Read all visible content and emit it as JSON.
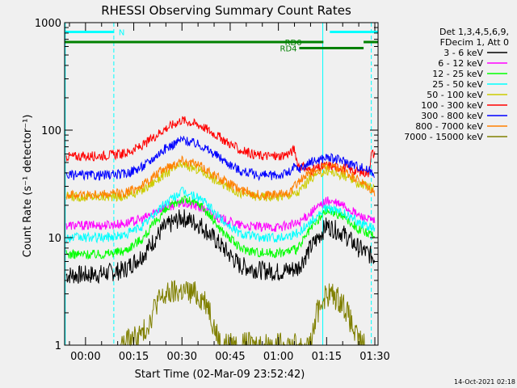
{
  "chart_data": {
    "type": "line",
    "title": "RHESSI Observing Summary Count Rates",
    "xlabel": "Start Time (02-Mar-09 23:52:42)",
    "ylabel": "Count Rate (s⁻¹ detector⁻¹)",
    "y_scale": "log",
    "ylim": [
      1,
      1000
    ],
    "xlim_minutes": [
      -6.5,
      91.0
    ],
    "y_ticks": [
      {
        "value": 1,
        "label": "1"
      },
      {
        "value": 10,
        "label": "10"
      },
      {
        "value": 100,
        "label": "100"
      },
      {
        "value": 1000,
        "label": "1000"
      }
    ],
    "x_ticks": [
      {
        "value": 0,
        "label": "00:00"
      },
      {
        "value": 15,
        "label": "00:15"
      },
      {
        "value": 30,
        "label": "00:30"
      },
      {
        "value": 45,
        "label": "00:45"
      },
      {
        "value": 60,
        "label": "01:00"
      },
      {
        "value": 75,
        "label": "01:15"
      },
      {
        "value": 90,
        "label": "01:30"
      }
    ],
    "legend_header": [
      "Det 1,3,4,5,6,9,",
      "FDecim 1, Att 0"
    ],
    "legend_position": "right",
    "series": [
      {
        "name": "3 - 6 keV",
        "color": "#000000",
        "x": [
          -6,
          0,
          5,
          12,
          18,
          24,
          30,
          36,
          42,
          48,
          54,
          60,
          66,
          70,
          75,
          80,
          85,
          90
        ],
        "y": [
          4.5,
          4.5,
          4.6,
          5,
          7,
          12,
          15.5,
          13,
          8.5,
          5.5,
          5,
          4.8,
          5.2,
          8,
          13,
          11,
          8,
          6.5
        ]
      },
      {
        "name": "6 - 12 keV",
        "color": "#ff00ff",
        "x": [
          -6,
          0,
          5,
          12,
          18,
          24,
          30,
          36,
          42,
          48,
          54,
          60,
          66,
          70,
          75,
          80,
          85,
          90
        ],
        "y": [
          13,
          13,
          13,
          13.5,
          15,
          19,
          21,
          19,
          15,
          13,
          12.5,
          12.5,
          13.5,
          17,
          22,
          20,
          16,
          14
        ]
      },
      {
        "name": "12 - 25 keV",
        "color": "#00ff00",
        "x": [
          -6,
          0,
          5,
          12,
          18,
          24,
          30,
          36,
          42,
          48,
          54,
          60,
          66,
          70,
          75,
          80,
          85,
          90
        ],
        "y": [
          7,
          7,
          7,
          7.5,
          10,
          17,
          23,
          20,
          12,
          8,
          7.3,
          7.2,
          7.8,
          12,
          18,
          16,
          12,
          10
        ]
      },
      {
        "name": "25 - 50 keV",
        "color": "#00ffff",
        "x": [
          -6,
          0,
          5,
          12,
          18,
          24,
          30,
          36,
          42,
          48,
          54,
          60,
          66,
          70,
          75,
          80,
          85,
          90
        ],
        "y": [
          10,
          10,
          10,
          10.5,
          13,
          20,
          27,
          23,
          15,
          11,
          10,
          10,
          11,
          14,
          19,
          17,
          14,
          12
        ]
      },
      {
        "name": "50 - 100 keV",
        "color": "#cccc00",
        "x": [
          -6,
          0,
          5,
          12,
          18,
          24,
          30,
          36,
          42,
          48,
          54,
          60,
          66,
          70,
          75,
          80,
          85,
          90
        ],
        "y": [
          24,
          24,
          24,
          24,
          28,
          38,
          48,
          42,
          32,
          26,
          24,
          24,
          26,
          36,
          42,
          38,
          32,
          28
        ]
      },
      {
        "name": "100 - 300 keV",
        "color": "#ff0000",
        "x": [
          -6,
          0,
          5,
          12,
          18,
          24,
          30,
          36,
          42,
          48,
          54,
          60,
          64,
          65,
          66,
          70,
          75,
          80,
          85,
          88,
          89,
          90
        ],
        "y": [
          57,
          57,
          58,
          60,
          72,
          100,
          125,
          110,
          85,
          65,
          58,
          57,
          62,
          68,
          48,
          42,
          47,
          45,
          41,
          40,
          62,
          58
        ]
      },
      {
        "name": "300 - 800 keV",
        "color": "#0000ff",
        "x": [
          -6,
          0,
          5,
          12,
          18,
          24,
          30,
          36,
          42,
          48,
          54,
          60,
          64,
          65,
          66,
          70,
          75,
          80,
          85,
          90
        ],
        "y": [
          38,
          38,
          38,
          39,
          46,
          65,
          82,
          72,
          55,
          42,
          38,
          38,
          41,
          46,
          43,
          50,
          56,
          52,
          46,
          40
        ]
      },
      {
        "name": "800 - 7000 keV",
        "color": "#ff8000",
        "x": [
          -6,
          0,
          5,
          12,
          18,
          24,
          30,
          36,
          42,
          48,
          54,
          60,
          64,
          65,
          66,
          70,
          75,
          80,
          85,
          90
        ],
        "y": [
          25,
          25,
          25,
          26,
          31,
          43,
          53,
          46,
          35,
          28,
          25,
          25,
          27,
          30,
          33,
          40,
          46,
          42,
          34,
          26
        ]
      },
      {
        "name": "7000 - 15000 keV",
        "color": "#808000",
        "x": [
          11,
          14,
          18,
          20,
          22,
          26,
          30,
          34,
          38,
          40,
          42,
          70,
          71,
          72,
          74,
          76,
          80,
          82,
          84,
          86,
          87
        ],
        "y": [
          1,
          1.1,
          1.3,
          1.7,
          2.5,
          3,
          3.2,
          3,
          2.5,
          1.5,
          1,
          1,
          1.4,
          2,
          2.8,
          3,
          2.5,
          1.8,
          1.2,
          1,
          1
        ]
      }
    ],
    "annotations": {
      "bars": [
        {
          "label": "N",
          "color": "#00ffff",
          "x_start": -6.5,
          "x_end": 8.8,
          "y": 820
        },
        {
          "label": "",
          "color": "#00ffff",
          "x_start": 76,
          "x_end": 91,
          "y": 820
        },
        {
          "label": "RD0",
          "color": "#008000",
          "x_start": -6.5,
          "x_end": 74,
          "y": 660
        },
        {
          "label": "",
          "color": "#008000",
          "x_start": 86.5,
          "x_end": 91,
          "y": 660
        },
        {
          "label": "RD4",
          "color": "#008000",
          "x_start": 66.5,
          "x_end": 86.5,
          "y": 580
        }
      ],
      "vlines": [
        {
          "x": -6.3,
          "style": "solid",
          "color": "#00ffff"
        },
        {
          "x": 8.8,
          "style": "dashed",
          "color": "#00ffff"
        },
        {
          "x": 73.8,
          "style": "solid",
          "color": "#00ffff"
        },
        {
          "x": 88.9,
          "style": "dashed",
          "color": "#00ffff"
        }
      ]
    }
  },
  "footer": {
    "timestamp": "14-Oct-2021 02:18"
  }
}
